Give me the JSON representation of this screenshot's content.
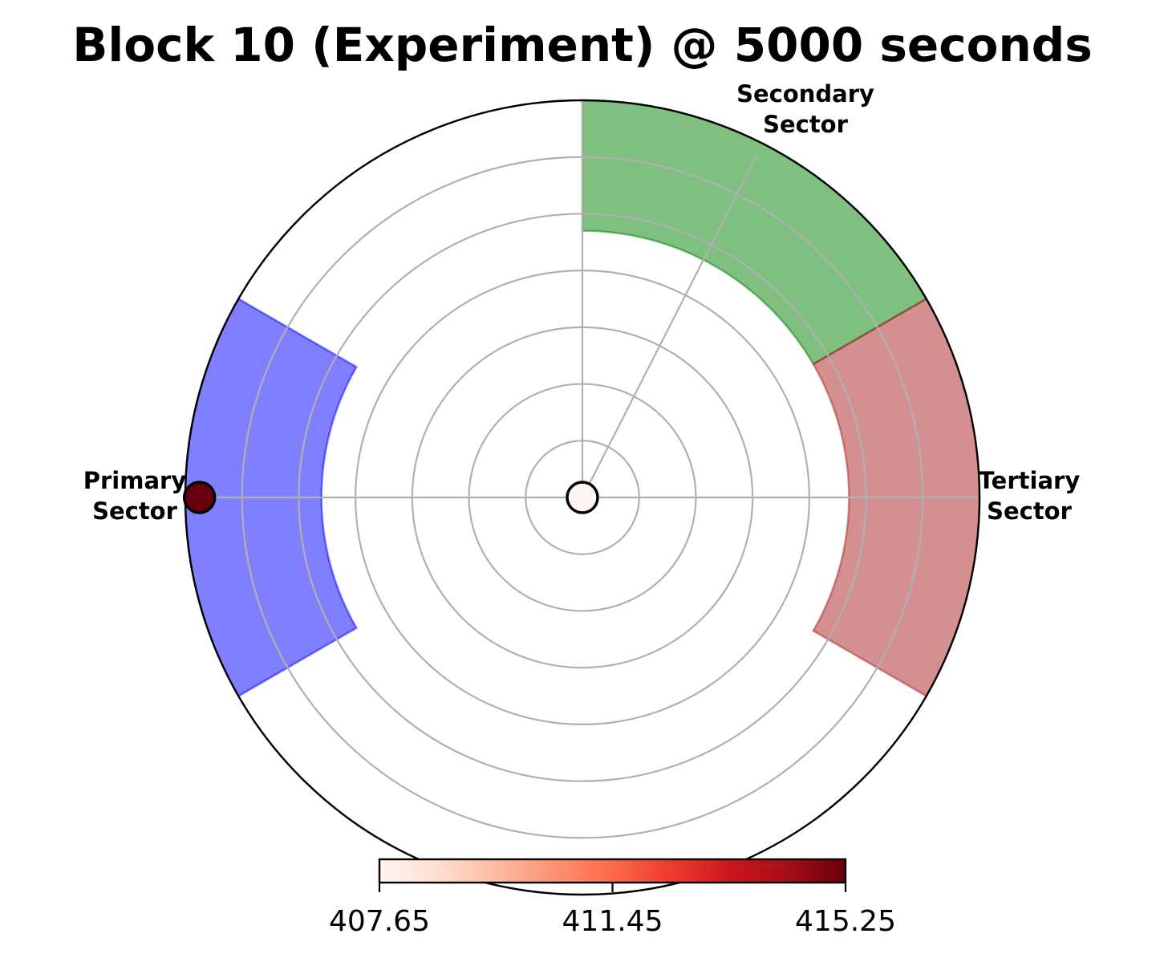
{
  "chart_data": {
    "type": "polar",
    "title": "Block 10  (Experiment) @ 5000 seconds",
    "grid": true,
    "rings": 7,
    "sectors": [
      {
        "name": "Primary Sector",
        "label_lines": [
          "Primary",
          "Sector"
        ],
        "theta_start_deg": 150,
        "theta_end_deg": 210,
        "r_inner": 4.6,
        "r_outer": 7.0,
        "color": "#0000ff",
        "opacity": 0.5
      },
      {
        "name": "Secondary Sector",
        "label_lines": [
          "Secondary",
          "Sector"
        ],
        "theta_start_deg": 30,
        "theta_end_deg": 90,
        "r_inner": 4.7,
        "r_outer": 7.0,
        "color": "#008000",
        "opacity": 0.5
      },
      {
        "name": "Tertiary Sector",
        "label_lines": [
          "Tertiary",
          "Sector"
        ],
        "theta_start_deg": -30,
        "theta_end_deg": 30,
        "r_inner": 4.7,
        "r_outer": 7.0,
        "color": "#aa2222",
        "opacity": 0.5
      }
    ],
    "points": [
      {
        "theta_deg": 180,
        "r": 6.75,
        "value": 415.25
      },
      {
        "theta_deg": 0,
        "r": 0,
        "value": 407.65
      }
    ],
    "source_line": {
      "theta_deg": 63,
      "r_max": 6.75
    },
    "colorbar": {
      "colormap": "Reds",
      "min": 407.65,
      "max": 415.25,
      "ticks": [
        "407.65",
        "411.45",
        "415.25"
      ],
      "stops": [
        "#fff5f0",
        "#fee0d2",
        "#fcbba1",
        "#fc9272",
        "#fb6a4a",
        "#ef3b2c",
        "#cb181d",
        "#a50f15",
        "#67000d"
      ]
    }
  }
}
